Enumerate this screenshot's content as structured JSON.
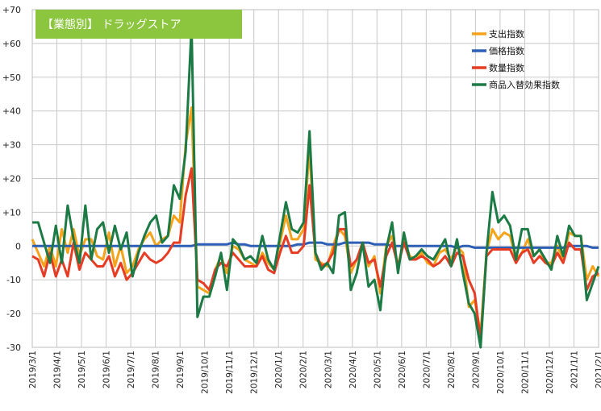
{
  "chart_data": {
    "type": "line",
    "title": "【業態別】 ドラッグストア",
    "title_bg_color": "#8cc63f",
    "ylim": [
      -30,
      70
    ],
    "y_ticks": [
      "+70",
      "+60",
      "+50",
      "+40",
      "+30",
      "+20",
      "+10",
      "0",
      "-10",
      "-20",
      "-30"
    ],
    "x_tick_labels": [
      "2019/3/1",
      "2019/4/1",
      "2019/5/1",
      "2019/6/1",
      "2019/7/1",
      "2019/8/1",
      "2019/9/1",
      "2019/10/1",
      "2019/11/1",
      "2019/12/1",
      "2020/1/1",
      "2020/2/1",
      "2020/3/1",
      "2020/4/1",
      "2020/5/1",
      "2020/6/1",
      "2020/7/1",
      "2020/8/1",
      "2020/9/1",
      "2020/10/1",
      "2020/11/1",
      "2020/12/1",
      "2021/1/1",
      "2021/2/1"
    ],
    "grid": true,
    "legend_position": "top-right",
    "series": [
      {
        "name": "支出指数",
        "color": "#f5a31a",
        "values": [
          2,
          -2,
          -6,
          0,
          -6,
          5,
          -2,
          5,
          -3,
          2,
          2,
          -3,
          -4,
          4,
          -6,
          0,
          -8,
          -6,
          -1,
          2,
          4,
          0,
          2,
          3,
          9,
          7,
          30,
          41,
          -12,
          -13,
          -14,
          -7,
          -3,
          -8,
          0,
          -1,
          -4,
          -5,
          -6,
          -2,
          -5,
          -7,
          1,
          9,
          2,
          2,
          5,
          29,
          -4,
          -5,
          -6,
          0,
          5,
          3,
          -8,
          -4,
          1,
          -6,
          -3,
          -14,
          0,
          3,
          -6,
          2,
          -3,
          -4,
          -2,
          -5,
          -6,
          -2,
          -1,
          -4,
          0,
          -2,
          -18,
          -16,
          -26,
          -2,
          5,
          2,
          4,
          3,
          -4,
          -2,
          2,
          -3,
          -1,
          -5,
          -5,
          0,
          -4,
          4,
          3,
          3,
          -10,
          -6,
          -9
        ]
      },
      {
        "name": "価格指数",
        "color": "#2c5fb5",
        "values": [
          0,
          0,
          0,
          0,
          0,
          0,
          0,
          0,
          0,
          0,
          0,
          0,
          0,
          0,
          0,
          0,
          0,
          0,
          0,
          0,
          0,
          0,
          0,
          0,
          0,
          0,
          0,
          0,
          0.5,
          0.5,
          0.5,
          0.5,
          0.5,
          0.5,
          1,
          0.5,
          0.5,
          0,
          0,
          0,
          0,
          0,
          0,
          0,
          0,
          0.5,
          0.5,
          1,
          1,
          1,
          0.5,
          0.5,
          0.5,
          1,
          1,
          1,
          1,
          1,
          0.5,
          0.5,
          0.5,
          0,
          0,
          0,
          0,
          0,
          0,
          0,
          0,
          0,
          0,
          0,
          -0.5,
          0,
          0,
          -0.5,
          -0.5,
          -0.5,
          -0.5,
          -0.5,
          -0.5,
          -0.5,
          -0.5,
          -0.5,
          -0.5,
          -0.5,
          -0.5,
          -0.5,
          -0.5,
          -0.5,
          -0.5,
          0,
          0,
          0,
          0,
          -0.5,
          -0.5
        ]
      },
      {
        "name": "数量指数",
        "color": "#e63c24",
        "values": [
          -3,
          -4,
          -9,
          -2,
          -9,
          -4,
          -9,
          1,
          -7,
          -2,
          -4,
          -6,
          -6,
          -3,
          -9,
          -5,
          -10,
          -8,
          -5,
          -2,
          -4,
          -5,
          -4,
          -2,
          1,
          1,
          15,
          23,
          -10,
          -11,
          -13,
          -7,
          -5,
          -6,
          -2,
          -4,
          -6,
          -6,
          -6,
          -3,
          -7,
          -8,
          -2,
          3,
          -2,
          -2,
          0,
          18,
          -2,
          -6,
          -5,
          -2,
          5,
          5,
          -6,
          -4,
          1,
          -5,
          -4,
          -12,
          -3,
          1,
          -6,
          1,
          -4,
          -4,
          -3,
          -4,
          -6,
          -5,
          -3,
          -6,
          -2,
          -3,
          -10,
          -14,
          -28,
          -3,
          -1,
          -1,
          -1,
          -1,
          -5,
          -2,
          -1,
          -5,
          -3,
          -5,
          -6,
          -2,
          -5,
          1,
          -1,
          -1,
          -13,
          -9,
          -8
        ]
      },
      {
        "name": "商品入替効果指数",
        "color": "#1c7a45",
        "values": [
          7,
          7,
          1,
          -5,
          6,
          -5,
          12,
          2,
          -5,
          12,
          -4,
          5,
          7,
          -2,
          6,
          -1,
          4,
          -9,
          -2,
          3,
          7,
          9,
          1,
          3,
          18,
          14,
          28,
          65,
          -21,
          -15,
          -15,
          -9,
          -2,
          -13,
          2,
          0,
          -4,
          -3,
          -5,
          3,
          -4,
          -7,
          3,
          13,
          5,
          4,
          7,
          34,
          -2,
          -7,
          -5,
          -8,
          9,
          10,
          -13,
          -8,
          1,
          -12,
          -10,
          -19,
          -1,
          7,
          -8,
          4,
          -4,
          -3,
          -1,
          -3,
          -4,
          -1,
          2,
          -6,
          2,
          -8,
          -17,
          -20,
          -30,
          -2,
          16,
          7,
          9,
          6,
          -4,
          5,
          5,
          -3,
          -1,
          -4,
          -7,
          3,
          -3,
          6,
          3,
          3,
          -16,
          -11,
          -6
        ]
      }
    ]
  }
}
